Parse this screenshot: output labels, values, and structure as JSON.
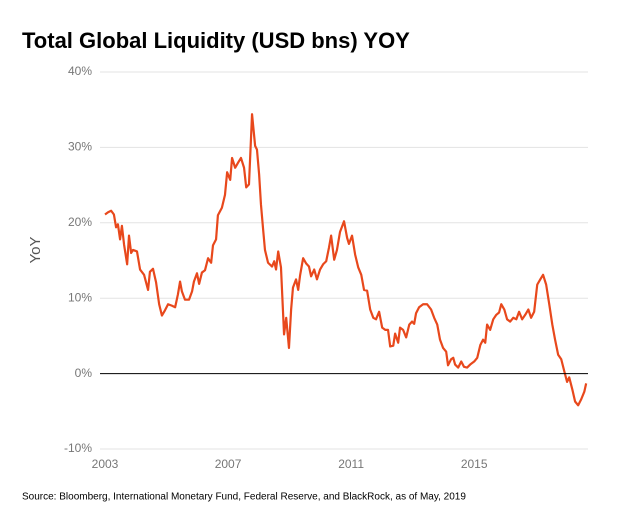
{
  "chart_data": {
    "type": "line",
    "title": "Total Global Liquidity (USD bns) YOY",
    "y_label": "YoY",
    "source": "Source: Bloomberg, International Monetary Fund, Federal Reserve, and BlackRock, as of May, 2019",
    "color": "#e8481c",
    "grid": true,
    "xlim": [
      2003,
      2018.7
    ],
    "xticks": [
      2003,
      2007,
      2011,
      2015
    ],
    "ylim": [
      -10,
      40
    ],
    "yticks": [
      {
        "value": -10,
        "label": "-10%"
      },
      {
        "value": 0,
        "label": "0%"
      },
      {
        "value": 10,
        "label": "10%"
      },
      {
        "value": 20,
        "label": "20%"
      },
      {
        "value": 30,
        "label": "30%"
      },
      {
        "value": 40,
        "label": "40%"
      }
    ],
    "x": [
      2003.0,
      2003.1,
      2003.2,
      2003.29,
      2003.36,
      2003.42,
      2003.49,
      2003.55,
      2003.62,
      2003.72,
      2003.78,
      2003.85,
      2003.91,
      2004.04,
      2004.14,
      2004.27,
      2004.4,
      2004.46,
      2004.56,
      2004.66,
      2004.76,
      2004.85,
      2004.95,
      2005.05,
      2005.18,
      2005.28,
      2005.37,
      2005.44,
      2005.5,
      2005.6,
      2005.73,
      2005.83,
      2005.89,
      2005.99,
      2006.06,
      2006.15,
      2006.25,
      2006.35,
      2006.45,
      2006.51,
      2006.61,
      2006.67,
      2006.8,
      2006.9,
      2006.97,
      2007.07,
      2007.13,
      2007.23,
      2007.33,
      2007.42,
      2007.52,
      2007.59,
      2007.68,
      2007.78,
      2007.88,
      2007.94,
      2008.01,
      2008.07,
      2008.14,
      2008.2,
      2008.3,
      2008.43,
      2008.5,
      2008.56,
      2008.63,
      2008.72,
      2008.82,
      2008.89,
      2008.98,
      2009.05,
      2009.11,
      2009.21,
      2009.28,
      2009.34,
      2009.44,
      2009.54,
      2009.63,
      2009.7,
      2009.8,
      2009.89,
      2009.99,
      2010.09,
      2010.19,
      2010.28,
      2010.35,
      2010.45,
      2010.54,
      2010.64,
      2010.77,
      2010.87,
      2010.93,
      2011.03,
      2011.13,
      2011.23,
      2011.33,
      2011.42,
      2011.52,
      2011.62,
      2011.72,
      2011.81,
      2011.91,
      2012.01,
      2012.11,
      2012.2,
      2012.27,
      2012.37,
      2012.43,
      2012.53,
      2012.59,
      2012.69,
      2012.79,
      2012.89,
      2012.98,
      2013.05,
      2013.11,
      2013.21,
      2013.34,
      2013.47,
      2013.6,
      2013.7,
      2013.8,
      2013.89,
      2013.99,
      2014.09,
      2014.15,
      2014.25,
      2014.32,
      2014.38,
      2014.48,
      2014.58,
      2014.67,
      2014.77,
      2014.87,
      2015.0,
      2015.1,
      2015.2,
      2015.29,
      2015.36,
      2015.42,
      2015.52,
      2015.62,
      2015.72,
      2015.81,
      2015.88,
      2015.98,
      2016.07,
      2016.17,
      2016.27,
      2016.37,
      2016.46,
      2016.56,
      2016.66,
      2016.76,
      2016.85,
      2016.95,
      2017.05,
      2017.15,
      2017.24,
      2017.34,
      2017.44,
      2017.54,
      2017.63,
      2017.73,
      2017.83,
      2017.93,
      2018.02,
      2018.09,
      2018.19,
      2018.28,
      2018.38,
      2018.48,
      2018.58,
      2018.64
    ],
    "values": [
      21.1,
      21.4,
      21.6,
      21.1,
      19.4,
      19.8,
      17.8,
      19.6,
      17.1,
      14.5,
      18.3,
      16.0,
      16.4,
      16.2,
      13.8,
      13.1,
      11.1,
      13.5,
      13.9,
      12.1,
      9.2,
      7.7,
      8.4,
      9.2,
      9.0,
      8.8,
      10.5,
      12.2,
      10.9,
      9.8,
      9.8,
      10.9,
      12.2,
      13.3,
      11.9,
      13.4,
      13.7,
      15.3,
      14.7,
      17.0,
      17.8,
      21.0,
      22.0,
      23.7,
      26.7,
      25.7,
      28.6,
      27.3,
      28.0,
      28.6,
      27.3,
      24.7,
      25.1,
      34.4,
      30.2,
      29.7,
      26.4,
      22.4,
      19.1,
      16.4,
      14.7,
      14.2,
      14.9,
      13.8,
      16.2,
      14.1,
      5.2,
      7.4,
      3.4,
      8.5,
      11.4,
      12.5,
      11.1,
      13.0,
      15.3,
      14.6,
      14.2,
      12.9,
      13.8,
      12.5,
      13.8,
      14.5,
      14.9,
      16.7,
      18.3,
      15.1,
      16.4,
      18.8,
      20.2,
      18.0,
      17.2,
      18.3,
      15.8,
      14.1,
      13.1,
      11.1,
      11.0,
      8.5,
      7.4,
      7.2,
      8.2,
      6.1,
      5.8,
      5.8,
      3.6,
      3.7,
      5.3,
      4.1,
      6.1,
      5.8,
      4.8,
      6.5,
      6.9,
      6.6,
      8.0,
      8.8,
      9.2,
      9.2,
      8.5,
      7.4,
      6.5,
      4.5,
      3.4,
      2.9,
      1.1,
      1.9,
      2.1,
      1.2,
      0.8,
      1.6,
      0.9,
      0.8,
      1.2,
      1.6,
      2.1,
      3.8,
      4.5,
      4.1,
      6.5,
      5.8,
      7.2,
      7.8,
      8.1,
      9.2,
      8.5,
      7.2,
      6.9,
      7.4,
      7.2,
      8.2,
      7.2,
      7.8,
      8.5,
      7.4,
      8.2,
      11.8,
      12.5,
      13.1,
      11.8,
      9.2,
      6.5,
      4.5,
      2.5,
      1.9,
      0.3,
      -1.1,
      -0.5,
      -2.1,
      -3.7,
      -4.2,
      -3.4,
      -2.4,
      -1.3
    ]
  }
}
